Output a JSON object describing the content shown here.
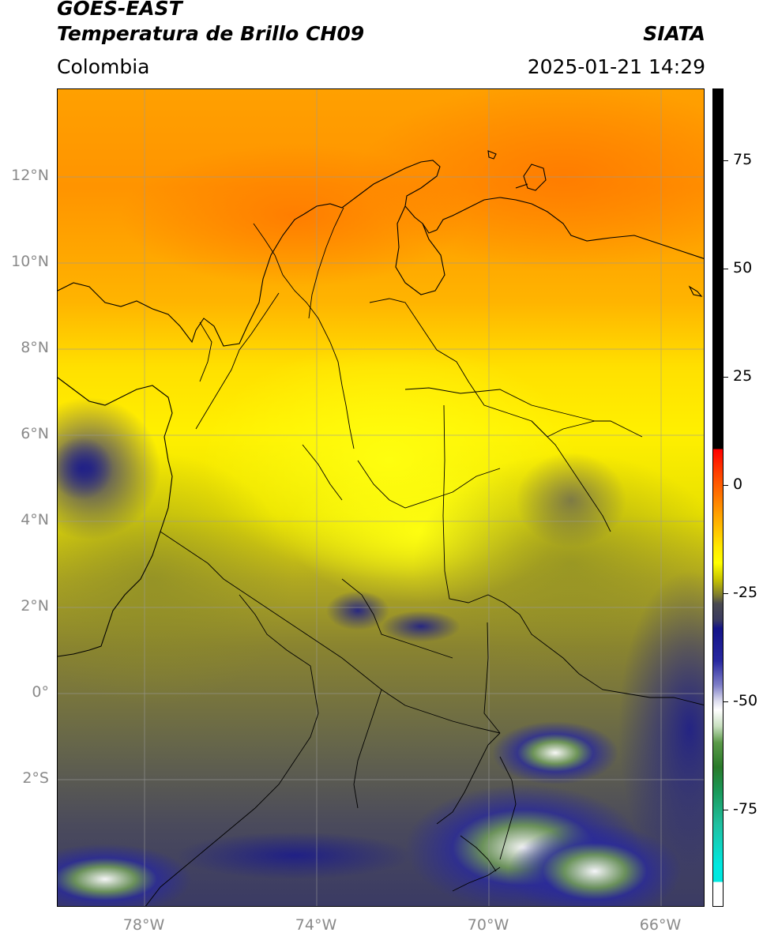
{
  "header": {
    "title_line1": "GOES-EAST",
    "title_line2": "Temperatura de Brillo CH09",
    "organization": "SIATA",
    "region": "Colombia",
    "timestamp": "2025-01-21 14:29"
  },
  "map": {
    "lon_range": [
      -80,
      -64.95
    ],
    "lat_range": [
      -4.8,
      14.0
    ],
    "lat_ticks": [
      {
        "value": 12,
        "label": "12°N"
      },
      {
        "value": 10,
        "label": "10°N"
      },
      {
        "value": 8,
        "label": "8°N"
      },
      {
        "value": 6,
        "label": "6°N"
      },
      {
        "value": 4,
        "label": "4°N"
      },
      {
        "value": 2,
        "label": "2°N"
      },
      {
        "value": 0,
        "label": "0°"
      },
      {
        "value": -2,
        "label": "2°S"
      }
    ],
    "lon_ticks": [
      {
        "value": -78,
        "label": "78°W"
      },
      {
        "value": -74,
        "label": "74°W"
      },
      {
        "value": -70,
        "label": "70°W"
      },
      {
        "value": -66,
        "label": "66°W"
      }
    ],
    "grid": true,
    "colors": {
      "warm_orange": "#ff8c00",
      "yellow": "#ffff00",
      "olive": "#7a7a30",
      "slate": "#44445a",
      "navy": "#1a1a8c",
      "white": "#ffffff",
      "green": "#3a8a3a"
    }
  },
  "colorbar": {
    "ticks": [
      {
        "value": 75,
        "label": "75"
      },
      {
        "value": 50,
        "label": "50"
      },
      {
        "value": 25,
        "label": "25"
      },
      {
        "value": 0,
        "label": "0"
      },
      {
        "value": -25,
        "label": "-25"
      },
      {
        "value": -50,
        "label": "-50"
      },
      {
        "value": -75,
        "label": "-75"
      }
    ],
    "range": [
      -100,
      90
    ]
  }
}
